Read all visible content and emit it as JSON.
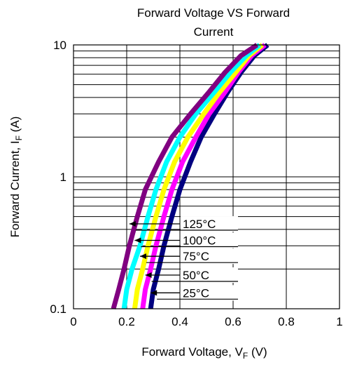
{
  "chart_data": {
    "type": "line",
    "title_line1": "Forward Voltage VS Forward",
    "title_line2": "Current",
    "xlabel_main": "Forward Voltage, V",
    "xlabel_sub": "F",
    "xlabel_unit": " (V)",
    "ylabel_main": "Forward Current, I",
    "ylabel_sub": "F",
    "ylabel_unit": " (A)",
    "xlim": [
      0,
      1
    ],
    "ylim": [
      0.1,
      10
    ],
    "y_scale": "log",
    "grid": true,
    "x_ticks": [
      {
        "value": 0,
        "label": "0"
      },
      {
        "value": 0.2,
        "label": "0.2"
      },
      {
        "value": 0.4,
        "label": "0.4"
      },
      {
        "value": 0.6,
        "label": "0.6"
      },
      {
        "value": 0.8,
        "label": "0.8"
      },
      {
        "value": 1,
        "label": "1"
      }
    ],
    "y_ticks": [
      {
        "value": 0.1,
        "label": "0.1"
      },
      {
        "value": 1,
        "label": "1"
      },
      {
        "value": 10,
        "label": "10"
      }
    ],
    "series": [
      {
        "name": "25°C",
        "color": "#000080",
        "x": [
          0.29,
          0.3,
          0.32,
          0.34,
          0.37,
          0.4,
          0.44,
          0.48,
          0.53,
          0.58,
          0.63,
          0.68,
          0.73
        ],
        "y": [
          0.1,
          0.14,
          0.2,
          0.3,
          0.5,
          0.8,
          1.3,
          2.0,
          3.0,
          4.4,
          6.2,
          8.3,
          10
        ]
      },
      {
        "name": "50°C",
        "color": "#FF00FF",
        "x": [
          0.26,
          0.27,
          0.29,
          0.31,
          0.34,
          0.37,
          0.41,
          0.46,
          0.51,
          0.57,
          0.62,
          0.67,
          0.72
        ],
        "y": [
          0.1,
          0.14,
          0.2,
          0.3,
          0.5,
          0.8,
          1.3,
          2.0,
          3.0,
          4.4,
          6.2,
          8.3,
          10
        ]
      },
      {
        "name": "75°C",
        "color": "#FFFF00",
        "x": [
          0.23,
          0.24,
          0.26,
          0.28,
          0.31,
          0.34,
          0.38,
          0.43,
          0.49,
          0.55,
          0.61,
          0.66,
          0.71
        ],
        "y": [
          0.1,
          0.14,
          0.2,
          0.3,
          0.5,
          0.8,
          1.3,
          2.0,
          3.0,
          4.4,
          6.2,
          8.3,
          10
        ]
      },
      {
        "name": "100°C",
        "color": "#00FFFF",
        "x": [
          0.19,
          0.2,
          0.22,
          0.25,
          0.28,
          0.31,
          0.35,
          0.4,
          0.46,
          0.53,
          0.59,
          0.65,
          0.7
        ],
        "y": [
          0.1,
          0.14,
          0.2,
          0.3,
          0.5,
          0.8,
          1.3,
          2.0,
          3.0,
          4.4,
          6.2,
          8.3,
          10
        ]
      },
      {
        "name": "125°C",
        "color": "#800080",
        "x": [
          0.15,
          0.17,
          0.19,
          0.21,
          0.24,
          0.27,
          0.32,
          0.37,
          0.44,
          0.51,
          0.57,
          0.63,
          0.69
        ],
        "y": [
          0.1,
          0.14,
          0.2,
          0.3,
          0.5,
          0.8,
          1.3,
          2.0,
          3.0,
          4.4,
          6.2,
          8.3,
          10
        ]
      }
    ],
    "annotations": [
      {
        "text": "125°C",
        "arrow_x": 0.21,
        "arrow_y": 0.44
      },
      {
        "text": "100°C",
        "arrow_x": 0.23,
        "arrow_y": 0.33
      },
      {
        "text": "75°C",
        "arrow_x": 0.25,
        "arrow_y": 0.25
      },
      {
        "text": "50°C",
        "arrow_x": 0.27,
        "arrow_y": 0.18
      },
      {
        "text": "25°C",
        "arrow_x": 0.29,
        "arrow_y": 0.132
      }
    ]
  }
}
